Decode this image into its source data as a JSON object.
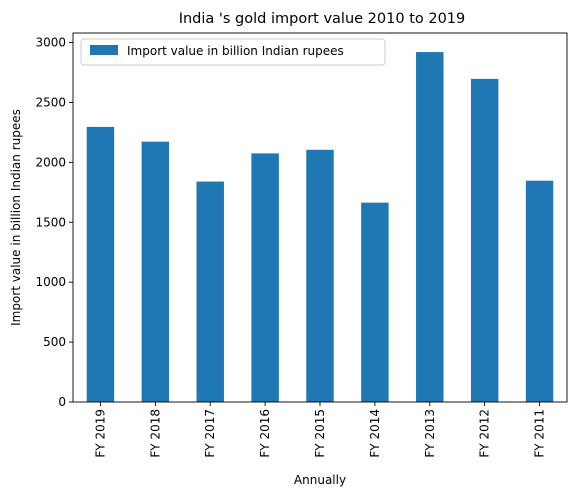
{
  "chart_data": {
    "type": "bar",
    "title": "India 's gold import value 2010 to 2019",
    "xlabel": "Annually",
    "ylabel": "Import value in billion Indian rupees",
    "categories": [
      "FY 2019",
      "FY 2018",
      "FY 2017",
      "FY 2016",
      "FY 2015",
      "FY 2014",
      "FY 2013",
      "FY 2012",
      "FY 2011"
    ],
    "series": [
      {
        "name": "Import value in billion Indian rupees",
        "values": [
          2296,
          2173,
          1840,
          2075,
          2105,
          1664,
          2921,
          2697,
          1847
        ],
        "color": "#1f77b4"
      }
    ],
    "ylim": [
      0,
      3080
    ],
    "yticks": [
      0,
      500,
      1000,
      1500,
      2000,
      2500,
      3000
    ],
    "legend": "top-left",
    "grid": false
  }
}
